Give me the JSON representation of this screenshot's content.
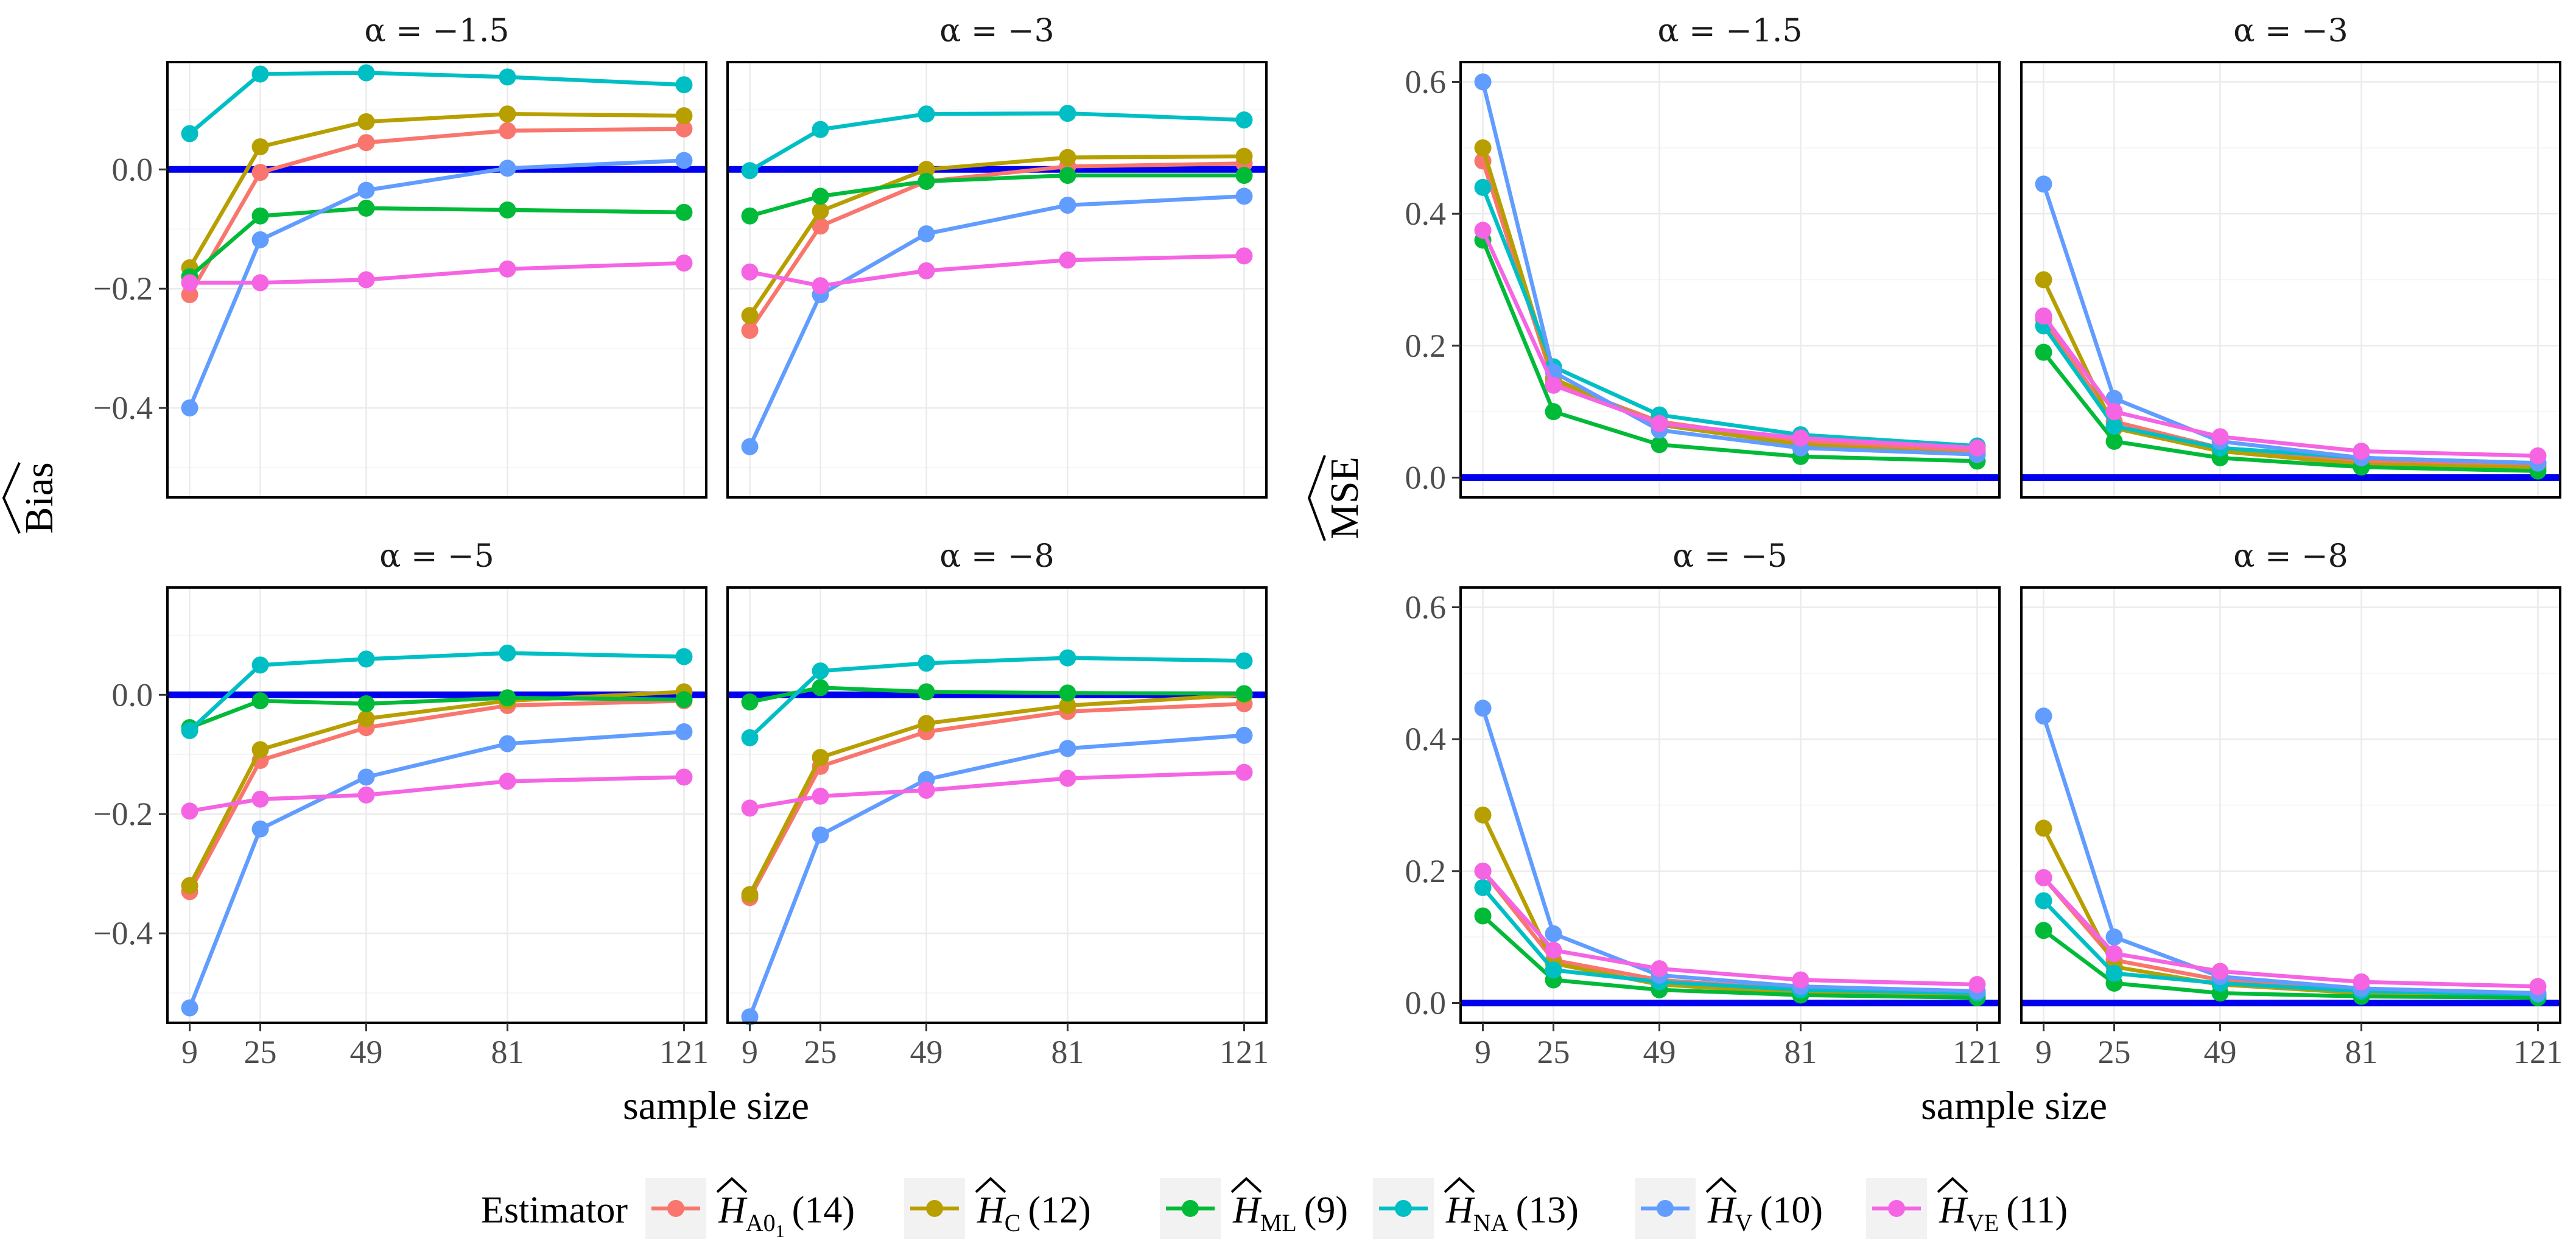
{
  "chart_data": [
    {
      "type": "line",
      "panel_group": "bias",
      "ylabel": "Bias",
      "ylabel_hat": true,
      "xlabel": "sample size",
      "x": [
        9,
        25,
        49,
        81,
        121
      ],
      "x_ticks": [
        "9",
        "25",
        "49",
        "81",
        "121"
      ],
      "ylim": [
        -0.55,
        0.18
      ],
      "y_ticks": [
        -0.4,
        -0.2,
        0.0
      ],
      "y_tick_labels": [
        "−0.4",
        "−0.2",
        "0.0"
      ],
      "reference_line": 0.0,
      "panels": [
        {
          "title": "α = −1.5",
          "series": [
            {
              "key": "A01",
              "values": [
                -0.21,
                -0.005,
                0.045,
                0.065,
                0.068
              ]
            },
            {
              "key": "C",
              "values": [
                -0.165,
                0.038,
                0.08,
                0.093,
                0.09
              ]
            },
            {
              "key": "ML",
              "values": [
                -0.18,
                -0.078,
                -0.065,
                -0.068,
                -0.072
              ]
            },
            {
              "key": "NA",
              "values": [
                0.06,
                0.16,
                0.162,
                0.155,
                0.142
              ]
            },
            {
              "key": "V",
              "values": [
                -0.4,
                -0.118,
                -0.035,
                0.002,
                0.015
              ]
            },
            {
              "key": "VE",
              "values": [
                -0.19,
                -0.19,
                -0.185,
                -0.167,
                -0.157
              ]
            }
          ]
        },
        {
          "title": "α = −3",
          "series": [
            {
              "key": "A01",
              "values": [
                -0.27,
                -0.095,
                -0.02,
                0.005,
                0.01
              ]
            },
            {
              "key": "C",
              "values": [
                -0.245,
                -0.07,
                0.0,
                0.02,
                0.022
              ]
            },
            {
              "key": "ML",
              "values": [
                -0.078,
                -0.045,
                -0.02,
                -0.01,
                -0.01
              ]
            },
            {
              "key": "NA",
              "values": [
                -0.002,
                0.067,
                0.093,
                0.094,
                0.083
              ]
            },
            {
              "key": "V",
              "values": [
                -0.465,
                -0.21,
                -0.108,
                -0.06,
                -0.045
              ]
            },
            {
              "key": "VE",
              "values": [
                -0.172,
                -0.195,
                -0.17,
                -0.152,
                -0.145
              ]
            }
          ]
        },
        {
          "title": "α = −5",
          "series": [
            {
              "key": "A01",
              "values": [
                -0.33,
                -0.11,
                -0.055,
                -0.018,
                -0.01
              ]
            },
            {
              "key": "C",
              "values": [
                -0.32,
                -0.092,
                -0.04,
                -0.01,
                0.005
              ]
            },
            {
              "key": "ML",
              "values": [
                -0.055,
                -0.01,
                -0.015,
                -0.005,
                -0.008
              ]
            },
            {
              "key": "NA",
              "values": [
                -0.06,
                0.05,
                0.06,
                0.07,
                0.064
              ]
            },
            {
              "key": "V",
              "values": [
                -0.525,
                -0.225,
                -0.138,
                -0.082,
                -0.062
              ]
            },
            {
              "key": "VE",
              "values": [
                -0.195,
                -0.175,
                -0.168,
                -0.145,
                -0.138
              ]
            }
          ]
        },
        {
          "title": "α = −8",
          "series": [
            {
              "key": "A01",
              "values": [
                -0.34,
                -0.12,
                -0.062,
                -0.028,
                -0.015
              ]
            },
            {
              "key": "C",
              "values": [
                -0.335,
                -0.105,
                -0.048,
                -0.018,
                0.0
              ]
            },
            {
              "key": "ML",
              "values": [
                -0.012,
                0.012,
                0.005,
                0.003,
                0.002
              ]
            },
            {
              "key": "NA",
              "values": [
                -0.072,
                0.04,
                0.053,
                0.062,
                0.057
              ]
            },
            {
              "key": "V",
              "values": [
                -0.54,
                -0.235,
                -0.142,
                -0.09,
                -0.068
              ]
            },
            {
              "key": "VE",
              "values": [
                -0.19,
                -0.17,
                -0.16,
                -0.14,
                -0.13
              ]
            }
          ]
        }
      ]
    },
    {
      "type": "line",
      "panel_group": "mse",
      "ylabel": "MSE",
      "ylabel_hat": true,
      "xlabel": "sample size",
      "x": [
        9,
        25,
        49,
        81,
        121
      ],
      "x_ticks": [
        "9",
        "25",
        "49",
        "81",
        "121"
      ],
      "ylim": [
        -0.03,
        0.63
      ],
      "y_ticks": [
        0.0,
        0.2,
        0.4,
        0.6
      ],
      "y_tick_labels": [
        "0.0",
        "0.2",
        "0.4",
        "0.6"
      ],
      "reference_line": 0.0,
      "panels": [
        {
          "title": "α = −1.5",
          "series": [
            {
              "key": "A01",
              "values": [
                0.48,
                0.145,
                0.085,
                0.055,
                0.04
              ]
            },
            {
              "key": "C",
              "values": [
                0.5,
                0.15,
                0.08,
                0.05,
                0.035
              ]
            },
            {
              "key": "ML",
              "values": [
                0.36,
                0.1,
                0.05,
                0.032,
                0.025
              ]
            },
            {
              "key": "NA",
              "values": [
                0.44,
                0.168,
                0.095,
                0.065,
                0.048
              ]
            },
            {
              "key": "V",
              "values": [
                0.6,
                0.16,
                0.072,
                0.045,
                0.035
              ]
            },
            {
              "key": "VE",
              "values": [
                0.375,
                0.14,
                0.082,
                0.06,
                0.045
              ]
            }
          ]
        },
        {
          "title": "α = −3",
          "series": [
            {
              "key": "A01",
              "values": [
                0.24,
                0.085,
                0.045,
                0.025,
                0.018
              ]
            },
            {
              "key": "C",
              "values": [
                0.3,
                0.075,
                0.04,
                0.02,
                0.015
              ]
            },
            {
              "key": "ML",
              "values": [
                0.19,
                0.055,
                0.03,
                0.016,
                0.01
              ]
            },
            {
              "key": "NA",
              "values": [
                0.23,
                0.078,
                0.045,
                0.03,
                0.022
              ]
            },
            {
              "key": "V",
              "values": [
                0.445,
                0.12,
                0.055,
                0.03,
                0.022
              ]
            },
            {
              "key": "VE",
              "values": [
                0.245,
                0.1,
                0.062,
                0.04,
                0.033
              ]
            }
          ]
        },
        {
          "title": "α = −5",
          "series": [
            {
              "key": "A01",
              "values": [
                0.2,
                0.065,
                0.035,
                0.02,
                0.012
              ]
            },
            {
              "key": "C",
              "values": [
                0.285,
                0.06,
                0.028,
                0.015,
                0.01
              ]
            },
            {
              "key": "ML",
              "values": [
                0.132,
                0.035,
                0.02,
                0.012,
                0.008
              ]
            },
            {
              "key": "NA",
              "values": [
                0.175,
                0.05,
                0.032,
                0.02,
                0.015
              ]
            },
            {
              "key": "V",
              "values": [
                0.447,
                0.105,
                0.042,
                0.025,
                0.018
              ]
            },
            {
              "key": "VE",
              "values": [
                0.2,
                0.08,
                0.052,
                0.035,
                0.028
              ]
            }
          ]
        },
        {
          "title": "α = −8",
          "series": [
            {
              "key": "A01",
              "values": [
                0.19,
                0.065,
                0.035,
                0.018,
                0.012
              ]
            },
            {
              "key": "C",
              "values": [
                0.265,
                0.055,
                0.028,
                0.015,
                0.01
              ]
            },
            {
              "key": "ML",
              "values": [
                0.11,
                0.03,
                0.015,
                0.01,
                0.008
              ]
            },
            {
              "key": "NA",
              "values": [
                0.155,
                0.045,
                0.03,
                0.018,
                0.013
              ]
            },
            {
              "key": "V",
              "values": [
                0.435,
                0.1,
                0.04,
                0.022,
                0.015
              ]
            },
            {
              "key": "VE",
              "values": [
                0.19,
                0.075,
                0.048,
                0.032,
                0.025
              ]
            }
          ]
        }
      ]
    }
  ],
  "legend": {
    "title": "Estimator",
    "position": "bottom",
    "entries": [
      {
        "key": "A01",
        "color": "#F8766D",
        "sub": "A0",
        "sub2": "1",
        "eq": "(14)"
      },
      {
        "key": "C",
        "color": "#B79F00",
        "sub": "C",
        "eq": "(12)"
      },
      {
        "key": "ML",
        "color": "#00BA38",
        "sub": "ML",
        "eq": "(9)"
      },
      {
        "key": "NA",
        "color": "#00BFC4",
        "sub": "NA",
        "eq": "(13)"
      },
      {
        "key": "V",
        "color": "#619CFF",
        "sub": "V",
        "eq": "(10)"
      },
      {
        "key": "VE",
        "color": "#F564E3",
        "sub": "VE",
        "eq": "(11)"
      }
    ]
  },
  "colors": {
    "reference_line": "#0000EE",
    "panel_border": "#000000",
    "grid": "#EBEBEB"
  }
}
